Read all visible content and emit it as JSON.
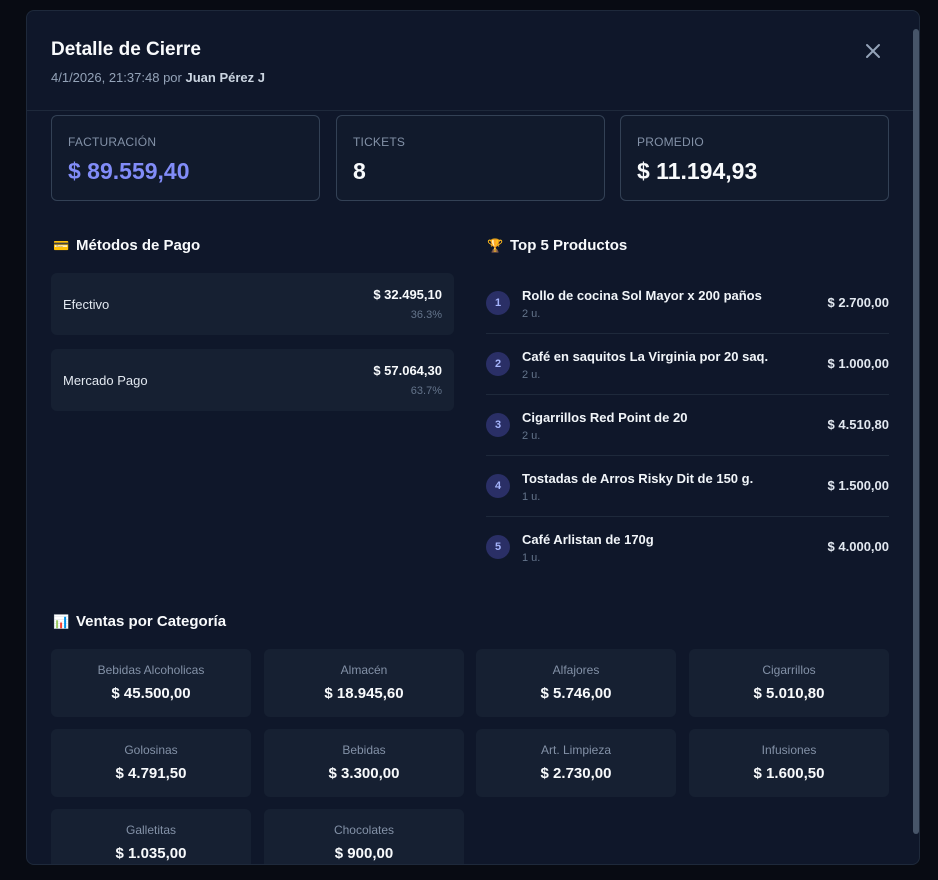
{
  "header": {
    "title": "Detalle de Cierre",
    "datetime": "4/1/2026, 21:37:48",
    "by_word": "por",
    "user": "Juan Pérez J"
  },
  "stats": [
    {
      "label": "FACTURACIÓN",
      "value": "$ 89.559,40"
    },
    {
      "label": "TICKETS",
      "value": "8"
    },
    {
      "label": "PROMEDIO",
      "value": "$ 11.194,93"
    }
  ],
  "payments": {
    "title": "Métodos de Pago",
    "icon": "💳",
    "items": [
      {
        "name": "Efectivo",
        "amount": "$ 32.495,10",
        "percent": "36.3%"
      },
      {
        "name": "Mercado Pago",
        "amount": "$ 57.064,30",
        "percent": "63.7%"
      }
    ]
  },
  "top_products": {
    "title": "Top 5 Productos",
    "icon": "🏆",
    "items": [
      {
        "rank": "1",
        "name": "Rollo de cocina Sol Mayor x 200 paños",
        "qty": "2 u.",
        "total": "$ 2.700,00"
      },
      {
        "rank": "2",
        "name": "Café en saquitos La Virginia por 20 saq.",
        "qty": "2 u.",
        "total": "$ 1.000,00"
      },
      {
        "rank": "3",
        "name": "Cigarrillos Red Point de 20",
        "qty": "2 u.",
        "total": "$ 4.510,80"
      },
      {
        "rank": "4",
        "name": "Tostadas de Arros Risky Dit de 150 g.",
        "qty": "1 u.",
        "total": "$ 1.500,00"
      },
      {
        "rank": "5",
        "name": "Café Arlistan de 170g",
        "qty": "1 u.",
        "total": "$ 4.000,00"
      }
    ]
  },
  "categories": {
    "title": "Ventas por Categoría",
    "icon": "📊",
    "items": [
      {
        "name": "Bebidas Alcoholicas",
        "value": "$ 45.500,00"
      },
      {
        "name": "Almacén",
        "value": "$ 18.945,60"
      },
      {
        "name": "Alfajores",
        "value": "$ 5.746,00"
      },
      {
        "name": "Cigarrillos",
        "value": "$ 5.010,80"
      },
      {
        "name": "Golosinas",
        "value": "$ 4.791,50"
      },
      {
        "name": "Bebidas",
        "value": "$ 3.300,00"
      },
      {
        "name": "Art. Limpieza",
        "value": "$ 2.730,00"
      },
      {
        "name": "Infusiones",
        "value": "$ 1.600,50"
      },
      {
        "name": "Galletitas",
        "value": "$ 1.035,00"
      },
      {
        "name": "Chocolates",
        "value": "$ 900,00"
      }
    ]
  },
  "colors": {
    "accent": "#818cf8",
    "background": "#0f172a",
    "card": "#162032"
  }
}
